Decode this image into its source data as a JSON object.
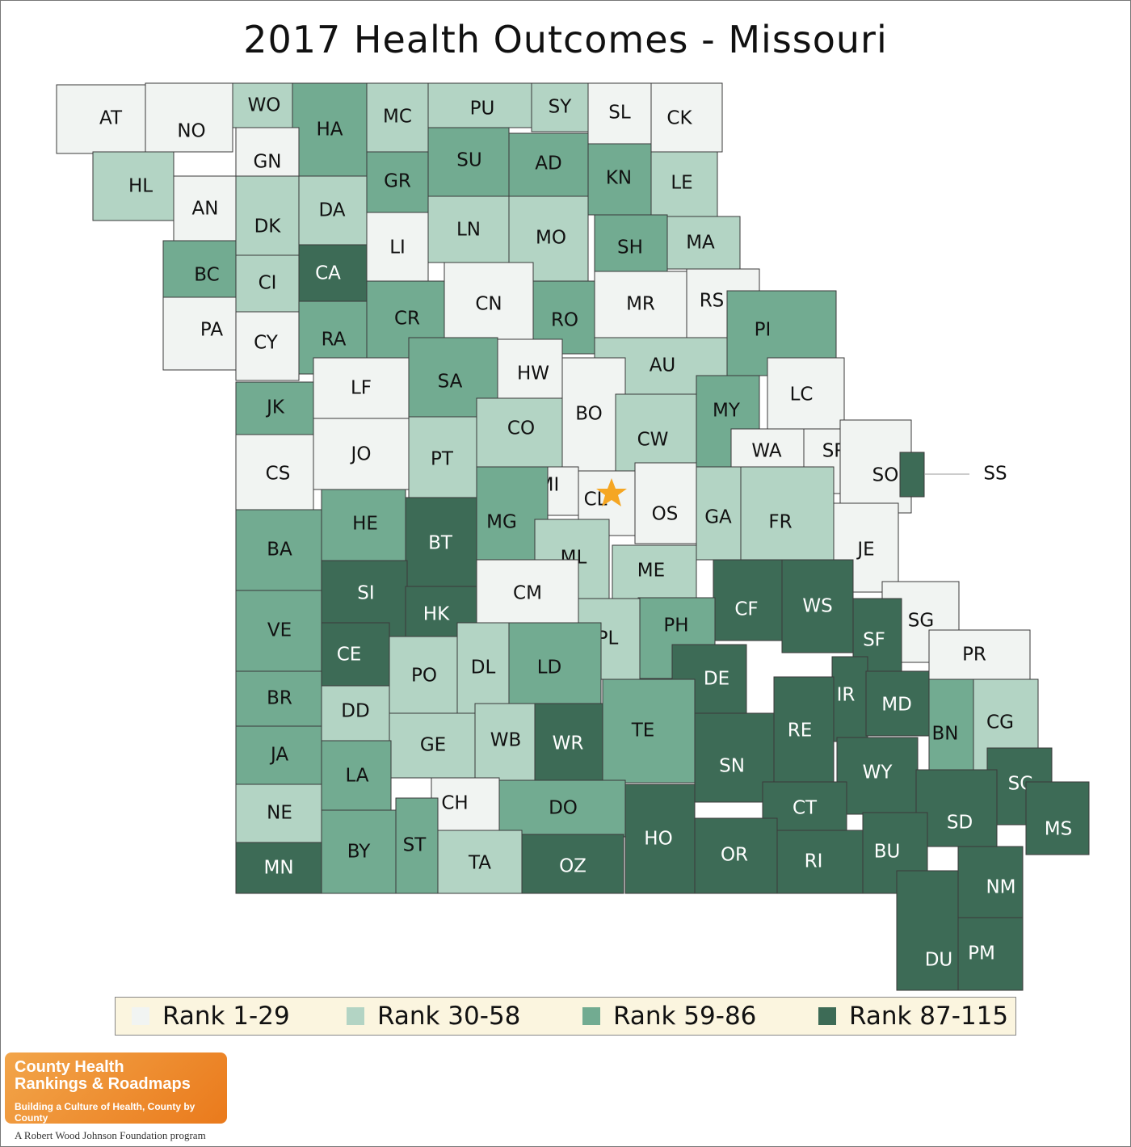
{
  "title": "2017 Health Outcomes - Missouri",
  "colors": {
    "r1": "#f1f4f2",
    "r2": "#b3d4c4",
    "r3": "#72ab91",
    "r4": "#3d6b56",
    "border": "#3a3a3a",
    "star": "#f5a623"
  },
  "legend": [
    {
      "label": "Rank 1-29",
      "level": 1
    },
    {
      "label": "Rank 30-58",
      "level": 2
    },
    {
      "label": "Rank 59-86",
      "level": 3
    },
    {
      "label": "Rank 87-115",
      "level": 4
    }
  ],
  "counties": [
    {
      "abbr": "AT",
      "level": 1
    },
    {
      "abbr": "NO",
      "level": 1
    },
    {
      "abbr": "WO",
      "level": 2
    },
    {
      "abbr": "HA",
      "level": 3
    },
    {
      "abbr": "MC",
      "level": 2
    },
    {
      "abbr": "PU",
      "level": 2
    },
    {
      "abbr": "SY",
      "level": 2
    },
    {
      "abbr": "SL",
      "level": 1
    },
    {
      "abbr": "CK",
      "level": 1
    },
    {
      "abbr": "HL",
      "level": 2
    },
    {
      "abbr": "GN",
      "level": 1
    },
    {
      "abbr": "GR",
      "level": 3
    },
    {
      "abbr": "SU",
      "level": 3
    },
    {
      "abbr": "AD",
      "level": 3
    },
    {
      "abbr": "KN",
      "level": 3
    },
    {
      "abbr": "LE",
      "level": 2
    },
    {
      "abbr": "AN",
      "level": 1
    },
    {
      "abbr": "DK",
      "level": 2
    },
    {
      "abbr": "DA",
      "level": 2
    },
    {
      "abbr": "LI",
      "level": 1
    },
    {
      "abbr": "LN",
      "level": 2
    },
    {
      "abbr": "MO",
      "level": 2
    },
    {
      "abbr": "SH",
      "level": 3
    },
    {
      "abbr": "MA",
      "level": 2
    },
    {
      "abbr": "BC",
      "level": 3
    },
    {
      "abbr": "CI",
      "level": 2
    },
    {
      "abbr": "CA",
      "level": 4
    },
    {
      "abbr": "CR",
      "level": 3
    },
    {
      "abbr": "CN",
      "level": 1
    },
    {
      "abbr": "RO",
      "level": 3
    },
    {
      "abbr": "MR",
      "level": 1
    },
    {
      "abbr": "RS",
      "level": 1
    },
    {
      "abbr": "PA",
      "level": 1
    },
    {
      "abbr": "CY",
      "level": 1
    },
    {
      "abbr": "RA",
      "level": 3
    },
    {
      "abbr": "PI",
      "level": 3
    },
    {
      "abbr": "LF",
      "level": 1
    },
    {
      "abbr": "SA",
      "level": 3
    },
    {
      "abbr": "HW",
      "level": 1
    },
    {
      "abbr": "AU",
      "level": 2
    },
    {
      "abbr": "LC",
      "level": 1
    },
    {
      "abbr": "JK",
      "level": 3
    },
    {
      "abbr": "BO",
      "level": 1
    },
    {
      "abbr": "MY",
      "level": 3
    },
    {
      "abbr": "CO",
      "level": 2
    },
    {
      "abbr": "CW",
      "level": 2
    },
    {
      "abbr": "CS",
      "level": 1
    },
    {
      "abbr": "JO",
      "level": 1
    },
    {
      "abbr": "PT",
      "level": 2
    },
    {
      "abbr": "WA",
      "level": 1
    },
    {
      "abbr": "SR",
      "level": 1
    },
    {
      "abbr": "SO",
      "level": 1
    },
    {
      "abbr": "SS",
      "level": 4
    },
    {
      "abbr": "MI",
      "level": 1
    },
    {
      "abbr": "CL",
      "level": 1
    },
    {
      "abbr": "OS",
      "level": 1
    },
    {
      "abbr": "GA",
      "level": 2
    },
    {
      "abbr": "FR",
      "level": 2
    },
    {
      "abbr": "HE",
      "level": 3
    },
    {
      "abbr": "BT",
      "level": 4
    },
    {
      "abbr": "MG",
      "level": 3
    },
    {
      "abbr": "JE",
      "level": 1
    },
    {
      "abbr": "BA",
      "level": 3
    },
    {
      "abbr": "ML",
      "level": 2
    },
    {
      "abbr": "ME",
      "level": 2
    },
    {
      "abbr": "SI",
      "level": 4
    },
    {
      "abbr": "CM",
      "level": 1
    },
    {
      "abbr": "CF",
      "level": 4
    },
    {
      "abbr": "WS",
      "level": 4
    },
    {
      "abbr": "VE",
      "level": 3
    },
    {
      "abbr": "HK",
      "level": 4
    },
    {
      "abbr": "PH",
      "level": 3
    },
    {
      "abbr": "SG",
      "level": 1
    },
    {
      "abbr": "PL",
      "level": 2
    },
    {
      "abbr": "SF",
      "level": 4
    },
    {
      "abbr": "CE",
      "level": 4
    },
    {
      "abbr": "PO",
      "level": 2
    },
    {
      "abbr": "DL",
      "level": 2
    },
    {
      "abbr": "LD",
      "level": 3
    },
    {
      "abbr": "DE",
      "level": 4
    },
    {
      "abbr": "PR",
      "level": 1
    },
    {
      "abbr": "BR",
      "level": 3
    },
    {
      "abbr": "DD",
      "level": 2
    },
    {
      "abbr": "IR",
      "level": 4
    },
    {
      "abbr": "MD",
      "level": 4
    },
    {
      "abbr": "TE",
      "level": 3
    },
    {
      "abbr": "RE",
      "level": 4
    },
    {
      "abbr": "BN",
      "level": 3
    },
    {
      "abbr": "CG",
      "level": 2
    },
    {
      "abbr": "JA",
      "level": 3
    },
    {
      "abbr": "GE",
      "level": 2
    },
    {
      "abbr": "WB",
      "level": 2
    },
    {
      "abbr": "WR",
      "level": 4
    },
    {
      "abbr": "SN",
      "level": 4
    },
    {
      "abbr": "LA",
      "level": 3
    },
    {
      "abbr": "WY",
      "level": 4
    },
    {
      "abbr": "SC",
      "level": 4
    },
    {
      "abbr": "NE",
      "level": 2
    },
    {
      "abbr": "CH",
      "level": 1
    },
    {
      "abbr": "DO",
      "level": 3
    },
    {
      "abbr": "CT",
      "level": 4
    },
    {
      "abbr": "SD",
      "level": 4
    },
    {
      "abbr": "MS",
      "level": 4
    },
    {
      "abbr": "HO",
      "level": 4
    },
    {
      "abbr": "BY",
      "level": 3
    },
    {
      "abbr": "ST",
      "level": 3
    },
    {
      "abbr": "MN",
      "level": 4
    },
    {
      "abbr": "TA",
      "level": 2
    },
    {
      "abbr": "OZ",
      "level": 4
    },
    {
      "abbr": "OR",
      "level": 4
    },
    {
      "abbr": "RI",
      "level": 4
    },
    {
      "abbr": "BU",
      "level": 4
    },
    {
      "abbr": "NM",
      "level": 4
    },
    {
      "abbr": "DU",
      "level": 4
    },
    {
      "abbr": "PM",
      "level": 4
    }
  ],
  "logo": {
    "line1": "County Health",
    "line2": "Rankings & Roadmaps",
    "tagline": "Building a Culture of Health, County by County"
  },
  "footer": "A Robert Wood Johnson Foundation program"
}
